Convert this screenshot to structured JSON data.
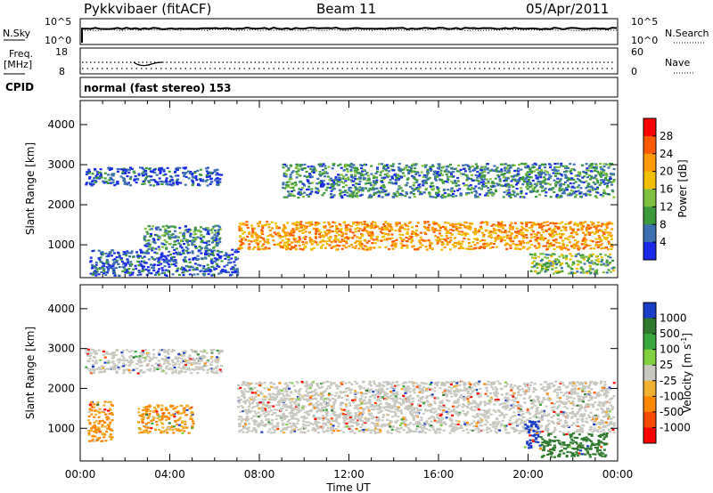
{
  "header": {
    "title": "Pykkvibaer (fitACF)",
    "beam": "Beam 11",
    "date": "05/Apr/2011"
  },
  "status_panels": {
    "nsky_label": "N.Sky",
    "nsky_ticks": [
      "10^5",
      "10^0"
    ],
    "nsearch_ticks": [
      "10^5",
      "10^0"
    ],
    "nsearch_label": "N.Search",
    "freq_label_top": "Freq.",
    "freq_label_unit": "[MHz]",
    "freq_ticks": [
      "18",
      "8"
    ],
    "nave_ticks": [
      "60",
      "0"
    ],
    "nave_label": "Nave",
    "cpid_label": "CPID",
    "cpid_text": "normal (fast stereo) 153"
  },
  "chart_data": [
    {
      "type": "heatmap",
      "title": "",
      "ylabel": "Slant Range [km]",
      "xlabel": "Time UT",
      "xlim": [
        "00:00",
        "24:00"
      ],
      "ylim": [
        180,
        4600
      ],
      "y_ticks": [
        "4000",
        "3000",
        "2000",
        "1000"
      ],
      "x_ticks": [
        "00:00",
        "04:00",
        "08:00",
        "12:00",
        "16:00",
        "20:00",
        "00:00"
      ],
      "colorbar_label": "Power [dB]",
      "colorbar_ticks": [
        "28",
        "24",
        "20",
        "16",
        "12",
        "8",
        "4"
      ],
      "colorbar_colors": [
        "#ff0000",
        "#ff5a00",
        "#ff9a00",
        "#f0c000",
        "#80c040",
        "#3c9a3c",
        "#3c70b0",
        "#1a2ae8"
      ],
      "regions": [
        {
          "desc_time": [
            0.2,
            6.3
          ],
          "range_km": [
            2500,
            2950
          ],
          "level_db": 6
        },
        {
          "desc_time": [
            0.4,
            7.0
          ],
          "range_km": [
            250,
            900
          ],
          "level_db": 6
        },
        {
          "desc_time": [
            2.8,
            6.2
          ],
          "range_km": [
            900,
            1500
          ],
          "level_db": 10
        },
        {
          "desc_time": [
            7.0,
            23.7
          ],
          "range_km": [
            900,
            1600
          ],
          "level_db": 24
        },
        {
          "desc_time": [
            9.0,
            23.8
          ],
          "range_km": [
            2200,
            3050
          ],
          "level_db": 10
        },
        {
          "desc_time": [
            20.0,
            23.8
          ],
          "range_km": [
            300,
            800
          ],
          "level_db": 14
        }
      ]
    },
    {
      "type": "heatmap",
      "title": "",
      "ylabel": "Slant Range [km]",
      "xlabel": "Time UT",
      "xlim": [
        "00:00",
        "24:00"
      ],
      "ylim": [
        180,
        4600
      ],
      "y_ticks": [
        "4000",
        "3000",
        "2000",
        "1000"
      ],
      "x_ticks": [
        "00:00",
        "04:00",
        "08:00",
        "12:00",
        "16:00",
        "20:00",
        "00:00"
      ],
      "colorbar_label": "Velocity [m s^-1]",
      "colorbar_ticks": [
        "1000",
        "500",
        "100",
        "25",
        "-25",
        "-100",
        "-500",
        "-1000"
      ],
      "colorbar_colors": [
        "#1a3ec8",
        "#2f7a2f",
        "#39a83c",
        "#80d040",
        "#c8c8c0",
        "#f0b030",
        "#ff8800",
        "#ff4a00",
        "#ff0000"
      ],
      "regions": [
        {
          "desc_time": [
            0.2,
            6.3
          ],
          "range_km": [
            2400,
            3000
          ],
          "velocity": 0
        },
        {
          "desc_time": [
            0.3,
            1.4
          ],
          "range_km": [
            700,
            1700
          ],
          "velocity": -300
        },
        {
          "desc_time": [
            2.5,
            5.0
          ],
          "range_km": [
            900,
            1600
          ],
          "velocity": -300
        },
        {
          "desc_time": [
            7.0,
            23.8
          ],
          "range_km": [
            900,
            2200
          ],
          "velocity": 0
        },
        {
          "desc_time": [
            19.8,
            20.5
          ],
          "range_km": [
            500,
            1200
          ],
          "velocity": 800
        },
        {
          "desc_time": [
            20.5,
            23.5
          ],
          "range_km": [
            300,
            900
          ],
          "velocity": 200
        }
      ]
    }
  ]
}
